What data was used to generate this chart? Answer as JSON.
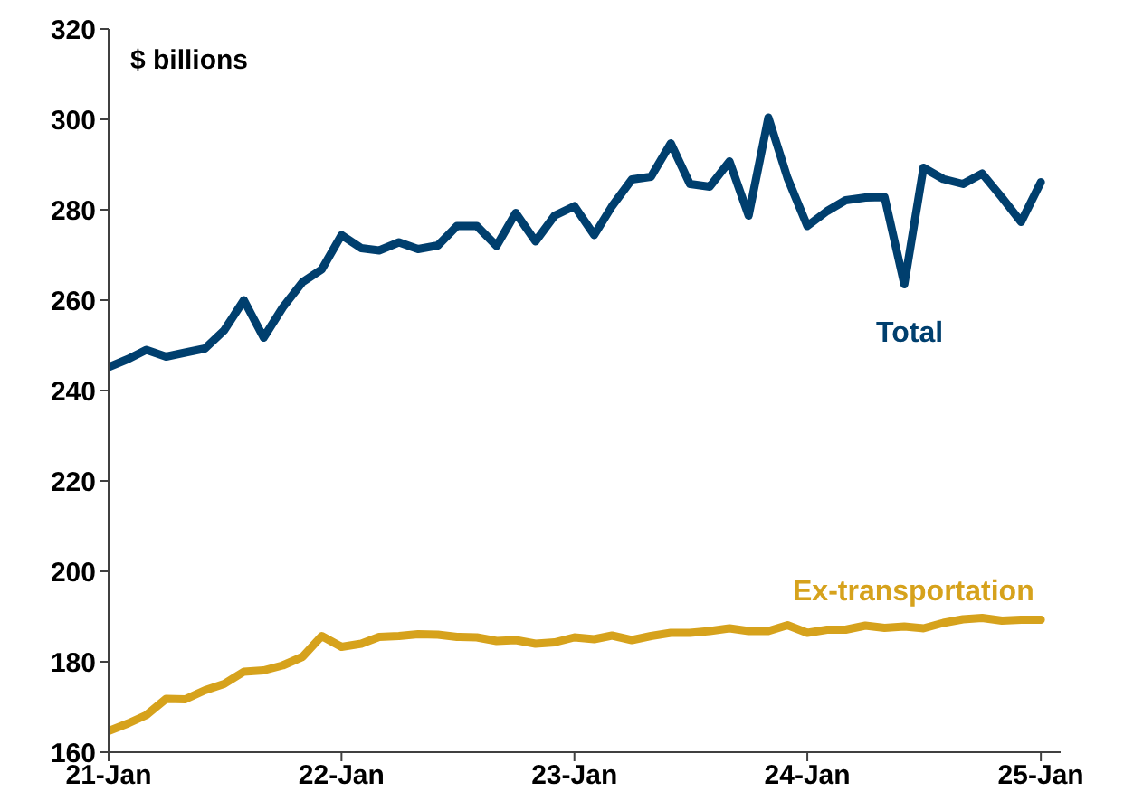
{
  "chart_data": {
    "type": "line",
    "ylabel": "$ billions",
    "x": [
      "2021-01",
      "2021-02",
      "2021-03",
      "2021-04",
      "2021-05",
      "2021-06",
      "2021-07",
      "2021-08",
      "2021-09",
      "2021-10",
      "2021-11",
      "2021-12",
      "2022-01",
      "2022-02",
      "2022-03",
      "2022-04",
      "2022-05",
      "2022-06",
      "2022-07",
      "2022-08",
      "2022-09",
      "2022-10",
      "2022-11",
      "2022-12",
      "2023-01",
      "2023-02",
      "2023-03",
      "2023-04",
      "2023-05",
      "2023-06",
      "2023-07",
      "2023-08",
      "2023-09",
      "2023-10",
      "2023-11",
      "2023-12",
      "2024-01",
      "2024-02",
      "2024-03",
      "2024-04",
      "2024-05",
      "2024-06",
      "2024-07",
      "2024-08",
      "2024-09",
      "2024-10",
      "2024-11",
      "2024-12",
      "2025-01"
    ],
    "series": [
      {
        "name": "Total",
        "color": "#003f6e",
        "values": [
          245.2,
          247,
          249,
          247.5,
          248.4,
          249.3,
          253.3,
          260,
          251.7,
          258.4,
          264,
          266.8,
          274.4,
          271.5,
          271,
          272.8,
          271.3,
          272.1,
          276.4,
          276.4,
          272,
          279.3,
          273,
          278.7,
          280.8,
          274.4,
          280.8,
          286.7,
          287.3,
          294.7,
          285.7,
          285.1,
          290.7,
          278.7,
          300.4,
          287,
          276.4,
          279.7,
          282.1,
          282.7,
          282.8,
          263.5,
          289.3,
          286.8,
          285.7,
          288,
          282.7,
          277.3,
          286.1
        ]
      },
      {
        "name": "Ex-transportation",
        "color": "#d6a21c",
        "values": [
          164.7,
          166.4,
          168.2,
          171.8,
          171.7,
          173.7,
          175.1,
          177.8,
          178.1,
          179.2,
          181.1,
          185.7,
          183.3,
          184,
          185.5,
          185.7,
          186.1,
          186,
          185.5,
          185.4,
          184.6,
          184.8,
          184,
          184.3,
          185.4,
          185,
          185.8,
          184.8,
          185.7,
          186.4,
          186.4,
          186.8,
          187.4,
          186.8,
          186.8,
          188.1,
          186.4,
          187.1,
          187.1,
          188,
          187.5,
          187.8,
          187.4,
          188.6,
          189.4,
          189.7,
          189.1,
          189.3,
          189.3
        ]
      }
    ],
    "xlim": [
      "2021-01",
      "2025-02"
    ],
    "xticks": [
      {
        "value": "2021-01",
        "label": "21-Jan"
      },
      {
        "value": "2022-01",
        "label": "22-Jan"
      },
      {
        "value": "2023-01",
        "label": "23-Jan"
      },
      {
        "value": "2024-01",
        "label": "24-Jan"
      },
      {
        "value": "2025-01",
        "label": "25-Jan"
      }
    ],
    "ylim": [
      160,
      320
    ],
    "yticks": [
      160,
      180,
      200,
      220,
      240,
      260,
      280,
      300,
      320
    ],
    "marker": "none",
    "line_style": "solid"
  }
}
